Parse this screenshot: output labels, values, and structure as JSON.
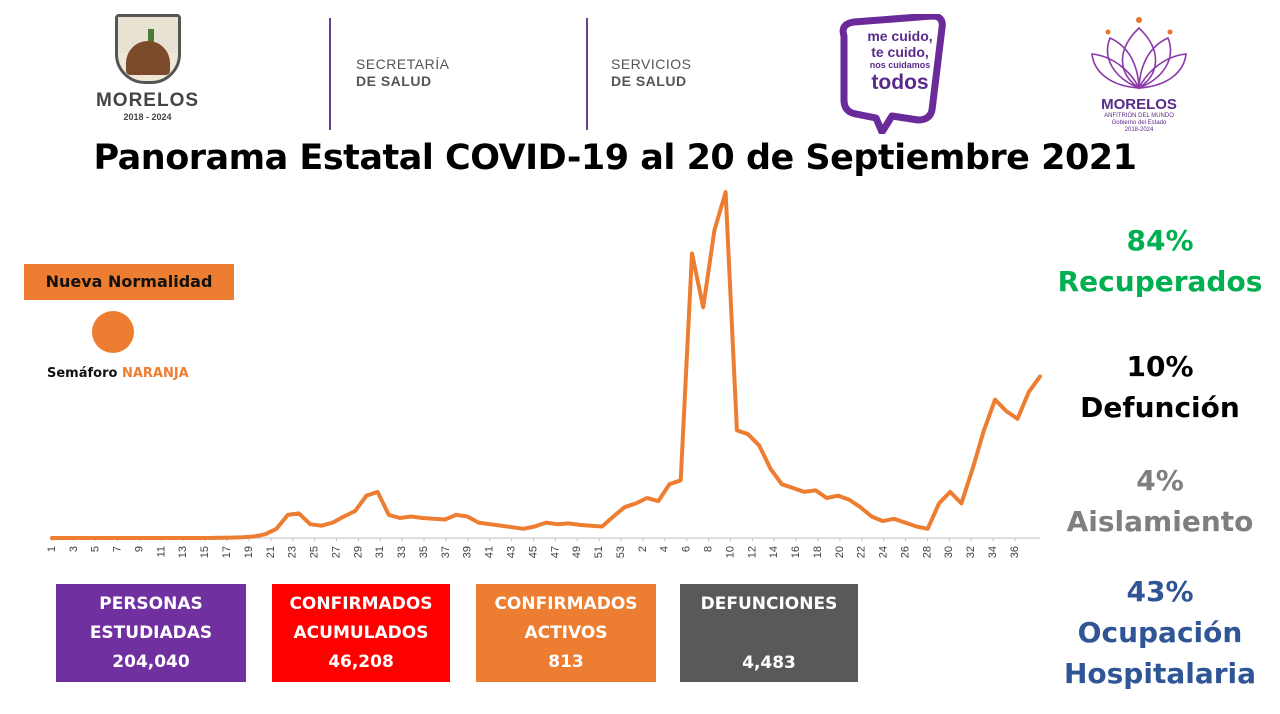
{
  "header": {
    "logo_left": {
      "name": "MORELOS",
      "years": "2018 - 2024"
    },
    "dept1": {
      "line1": "SECRETARÍA",
      "line2": "DE SALUD"
    },
    "dept2": {
      "line1": "SERVICIOS",
      "line2": "DE SALUD"
    },
    "campaign": {
      "line1": "me cuido,",
      "line2": "te cuido,",
      "line3": "nos cuidamos",
      "line4": "todos"
    },
    "logo_right": {
      "name": "MORELOS",
      "tagline": "ANFITRIÓN DEL MUNDO",
      "sub": "Gobierno del Estado",
      "years": "2018-2024"
    }
  },
  "title": "Panorama Estatal COVID-19 al 20 de Septiembre 2021",
  "legend": {
    "box_label": "Nueva Normalidad",
    "semaforo_prefix": "Semáforo ",
    "semaforo_value": "NARANJA"
  },
  "stats": {
    "estudiadas": {
      "line1": "PERSONAS",
      "line2": "ESTUDIADAS",
      "value": "204,040"
    },
    "confirmados": {
      "line1": "CONFIRMADOS",
      "line2": "ACUMULADOS",
      "value": "46,208"
    },
    "activos": {
      "line1": "CONFIRMADOS",
      "line2": "ACTIVOS",
      "value": "813"
    },
    "defunciones": {
      "line1": "DEFUNCIONES",
      "value": "4,483"
    }
  },
  "percentages": {
    "recuperados": {
      "value": "84%",
      "label": "Recuperados"
    },
    "defuncion": {
      "value": "10%",
      "label": "Defunción"
    },
    "aislamiento": {
      "value": "4%",
      "label": "Aislamiento"
    },
    "ocupacion": {
      "value": "43%",
      "label1": "Ocupación",
      "label2": "Hospitalaria"
    }
  },
  "colors": {
    "line": "#ed7d31",
    "purple": "#7030a0",
    "red": "#ff0000",
    "orange": "#ed7d31",
    "gray": "#595959",
    "green": "#00b050",
    "blue": "#2f5597"
  },
  "chart_data": {
    "type": "line",
    "title": "",
    "xlabel": "",
    "ylabel": "",
    "grid": false,
    "x_ticks": [
      "1",
      "3",
      "5",
      "7",
      "9",
      "11",
      "13",
      "15",
      "17",
      "19",
      "21",
      "23",
      "25",
      "27",
      "29",
      "31",
      "33",
      "35",
      "37",
      "39",
      "41",
      "43",
      "45",
      "47",
      "49",
      "51",
      "53",
      "2",
      "4",
      "6",
      "8",
      "10",
      "12",
      "14",
      "16",
      "18",
      "20",
      "22",
      "24",
      "26",
      "28",
      "30",
      "32",
      "34",
      "36"
    ],
    "series": [
      {
        "values": [
          0,
          0,
          0,
          0,
          0,
          0,
          0,
          0,
          0,
          0,
          0,
          0,
          0,
          0,
          0,
          0.3,
          0.5,
          1,
          2,
          5,
          12,
          30,
          32,
          18,
          16,
          20,
          28,
          35,
          55,
          60,
          30,
          26,
          28,
          26,
          25,
          24,
          30,
          28,
          20,
          18,
          16,
          14,
          12,
          15,
          20,
          18,
          19,
          17,
          16,
          15,
          28,
          40,
          45,
          52,
          48,
          70,
          75,
          370,
          300,
          400,
          450,
          140,
          135,
          120,
          90,
          70,
          65,
          60,
          62,
          52,
          55,
          50,
          40,
          28,
          22,
          25,
          20,
          15,
          12,
          45,
          60,
          45,
          90,
          140,
          180,
          165,
          155,
          190,
          210
        ]
      }
    ]
  }
}
